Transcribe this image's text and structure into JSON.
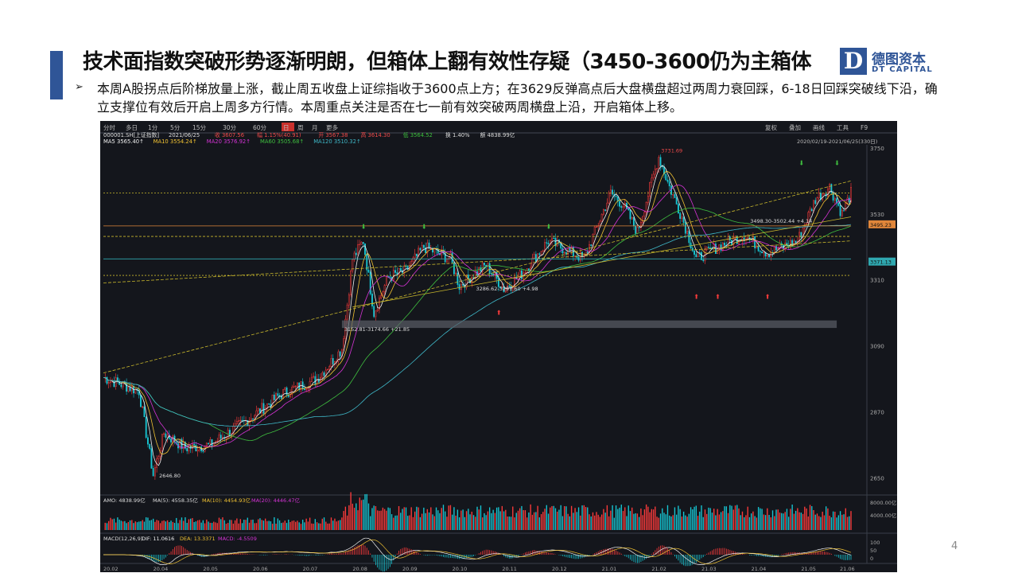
{
  "slide": {
    "title": "技术面指数突破形势逐渐明朗，但箱体上翻有效性存疑（3450-3600仍为主箱体",
    "bullet_marker": "➢",
    "bullet_text": "本周A股拐点后阶梯放量上涨，截止周五收盘上证综指收于3600点上方；在3629反弹高点后大盘横盘超过两周力衰回踩，6-18日回踩突破线下沿，确立支撑位有效后开启上周多方行情。本周重点关注是否在七一前有效突破两周横盘上沿，开启箱体上移。",
    "page_number": "4"
  },
  "logo": {
    "letter": "D",
    "cn": "德图资本",
    "en": "DT CAPITAL"
  },
  "terminal": {
    "period_tabs": [
      "分时",
      "多日",
      "1分",
      "5分",
      "15分",
      "30分",
      "60分",
      "日",
      "周",
      "月",
      "更多"
    ],
    "active_tab": "日",
    "right_tools": [
      "复权",
      "叠加",
      "画线",
      "工具",
      "F9"
    ],
    "info_row": {
      "code": "000001.SH[上证指数]",
      "date": "2021/06/25",
      "open_label": "收",
      "close": "3607.56",
      "change_label": "幅",
      "change": "1.15%(40.91)",
      "open_l": "开",
      "open": "3567.38",
      "high_l": "高",
      "high": "3614.30",
      "low_l": "低",
      "low": "3564.52",
      "turn_l": "换",
      "turnover": "1.40%",
      "amount_l": "额",
      "amount": "4838.99亿"
    },
    "ma_row": [
      {
        "label": "MA5",
        "value": "3565.40↑",
        "color": "#f0f0f0"
      },
      {
        "label": "MA10",
        "value": "3554.24↑",
        "color": "#f1c232"
      },
      {
        "label": "MA20",
        "value": "3576.92↑",
        "color": "#d633d6"
      },
      {
        "label": "MA60",
        "value": "3505.68↑",
        "color": "#3fbf3f"
      },
      {
        "label": "MA120",
        "value": "3510.32↑",
        "color": "#3fb9c9"
      }
    ],
    "range_label": "2020/02/19-2021/06/25(330日)",
    "price_ticks": [
      "3750",
      "3530",
      "3310",
      "3090",
      "2870",
      "2650"
    ],
    "price_tags": [
      {
        "text": "3495.23",
        "color": "#e0863a"
      },
      {
        "text": "3371.13",
        "color": "#2fa8b0"
      }
    ],
    "annotations": [
      "3731.69",
      "2646.80",
      "3152.81-3174.66  +21.85",
      "3286.62-3291.60  +4.98",
      "3498.30-3502.44  +4.14"
    ],
    "amo_row": {
      "amo": "AMO: 4838.99亿",
      "ma5": "MA(5): 4558.35亿",
      "ma10": "MA(10): 4454.93亿",
      "ma20": "MA(20): 4446.47亿"
    },
    "volume_ticks": [
      "8000.00亿",
      "4000.00亿"
    ],
    "macd_row": {
      "name": "MACD(12,26,9)",
      "dif": "DIF: 11.0616",
      "dea": "DEA: 13.3371",
      "macd": "MACD: -4.5509"
    },
    "macd_ticks": [
      "100",
      "50",
      "0"
    ],
    "x_dates": [
      "20.02",
      "20.04",
      "20.05",
      "20.06",
      "20.07",
      "20.08",
      "20.09",
      "20.10",
      "20.11",
      "20.12",
      "21.01",
      "21.02",
      "21.03",
      "21.04",
      "21.05",
      "21.06"
    ]
  },
  "chart_data": {
    "type": "candlestick",
    "title": "000001.SH[上证指数]",
    "ylim": [
      2620,
      3760
    ],
    "x_range": [
      "2020/02/19",
      "2021/06/25"
    ],
    "anchors": [
      {
        "d": 0,
        "p": 2985
      },
      {
        "d": 20,
        "p": 2940
      },
      {
        "d": 28,
        "p": 2660
      },
      {
        "d": 34,
        "p": 2800
      },
      {
        "d": 46,
        "p": 2750
      },
      {
        "d": 60,
        "p": 2760
      },
      {
        "d": 80,
        "p": 2840
      },
      {
        "d": 100,
        "p": 2930
      },
      {
        "d": 120,
        "p": 2980
      },
      {
        "d": 134,
        "p": 3080
      },
      {
        "d": 140,
        "p": 3380
      },
      {
        "d": 146,
        "p": 3440
      },
      {
        "d": 152,
        "p": 3200
      },
      {
        "d": 160,
        "p": 3320
      },
      {
        "d": 170,
        "p": 3340
      },
      {
        "d": 180,
        "p": 3420
      },
      {
        "d": 195,
        "p": 3380
      },
      {
        "d": 200,
        "p": 3290
      },
      {
        "d": 215,
        "p": 3360
      },
      {
        "d": 225,
        "p": 3280
      },
      {
        "d": 235,
        "p": 3330
      },
      {
        "d": 250,
        "p": 3440
      },
      {
        "d": 270,
        "p": 3380
      },
      {
        "d": 285,
        "p": 3600
      },
      {
        "d": 292,
        "p": 3560
      },
      {
        "d": 300,
        "p": 3470
      },
      {
        "d": 312,
        "p": 3720
      },
      {
        "d": 318,
        "p": 3620
      },
      {
        "d": 325,
        "p": 3520
      },
      {
        "d": 333,
        "p": 3380
      },
      {
        "d": 345,
        "p": 3420
      },
      {
        "d": 360,
        "p": 3460
      },
      {
        "d": 373,
        "p": 3400
      },
      {
        "d": 390,
        "p": 3440
      },
      {
        "d": 400,
        "p": 3580
      },
      {
        "d": 408,
        "p": 3620
      },
      {
        "d": 415,
        "p": 3530
      },
      {
        "d": 420,
        "p": 3600
      }
    ]
  }
}
